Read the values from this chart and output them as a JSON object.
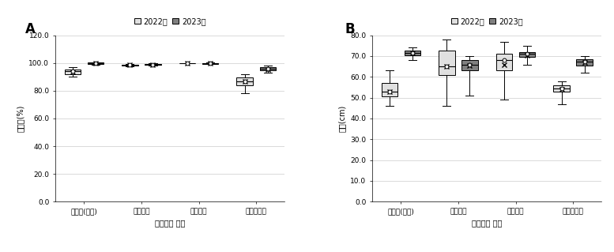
{
  "panel_A": {
    "ylabel": "출현율(%)",
    "xlabel": "비닐멀칭 처리",
    "categories": [
      "무멸칭(대조)",
      "투명비님",
      "흥색비님",
      "투습방수지"
    ],
    "ylim": [
      0,
      120
    ],
    "yticks": [
      0.0,
      20.0,
      40.0,
      60.0,
      80.0,
      100.0,
      120.0
    ],
    "boxes_2022": [
      {
        "q1": 92.0,
        "median": 94.0,
        "q3": 95.5,
        "whislo": 90.0,
        "whishi": 97.0,
        "mean": 93.5
      },
      {
        "q1": 98.0,
        "median": 98.5,
        "q3": 99.0,
        "whislo": 97.5,
        "whishi": 99.5,
        "mean": 98.5
      },
      {
        "q1": 100.0,
        "median": 100.0,
        "q3": 100.0,
        "whislo": 100.0,
        "whishi": 100.0,
        "mean": 100.0
      },
      {
        "q1": 84.0,
        "median": 87.0,
        "q3": 89.5,
        "whislo": 78.0,
        "whishi": 92.0,
        "mean": 87.0
      }
    ],
    "boxes_2023": [
      {
        "q1": 99.5,
        "median": 100.0,
        "q3": 100.5,
        "whislo": 99.0,
        "whishi": 100.5,
        "mean": 100.0
      },
      {
        "q1": 98.5,
        "median": 99.0,
        "q3": 99.5,
        "whislo": 98.0,
        "whishi": 100.0,
        "mean": 99.0
      },
      {
        "q1": 99.5,
        "median": 100.0,
        "q3": 100.0,
        "whislo": 99.5,
        "whishi": 100.5,
        "mean": 100.0
      },
      {
        "q1": 94.5,
        "median": 96.0,
        "q3": 97.0,
        "whislo": 93.0,
        "whishi": 98.0,
        "mean": 95.5
      }
    ]
  },
  "panel_B": {
    "ylabel": "경장(cm)",
    "xlabel": "비님멸칭 처리",
    "categories": [
      "무멸칭(대조)",
      "투명비님",
      "흥색비님",
      "투습방수지"
    ],
    "ylim": [
      0,
      80
    ],
    "yticks": [
      0.0,
      10.0,
      20.0,
      30.0,
      40.0,
      50.0,
      60.0,
      70.0,
      80.0
    ],
    "boxes_2022": [
      {
        "q1": 50.5,
        "median": 53.0,
        "q3": 57.0,
        "whislo": 46.0,
        "whishi": 63.0,
        "mean": 53.0
      },
      {
        "q1": 61.0,
        "median": 65.0,
        "q3": 72.5,
        "whislo": 46.0,
        "whishi": 78.0,
        "mean": 65.0
      },
      {
        "q1": 63.0,
        "median": 68.0,
        "q3": 71.0,
        "whislo": 49.0,
        "whishi": 77.0,
        "mean": 66.0
      },
      {
        "q1": 53.0,
        "median": 54.5,
        "q3": 56.0,
        "whislo": 47.0,
        "whishi": 58.0,
        "mean": 54.0
      }
    ],
    "boxes_2023": [
      {
        "q1": 70.5,
        "median": 71.5,
        "q3": 72.5,
        "whislo": 68.0,
        "whishi": 74.0,
        "mean": 71.5
      },
      {
        "q1": 63.0,
        "median": 66.0,
        "q3": 68.0,
        "whislo": 51.0,
        "whishi": 70.0,
        "mean": 65.5
      },
      {
        "q1": 69.5,
        "median": 71.0,
        "q3": 72.0,
        "whislo": 66.0,
        "whishi": 75.0,
        "mean": 70.5
      },
      {
        "q1": 65.5,
        "median": 67.5,
        "q3": 68.5,
        "whislo": 62.0,
        "whishi": 70.0,
        "mean": 67.0
      }
    ]
  },
  "face_2022": "#e0e0e0",
  "face_2023": "#808080",
  "legend_2022": "2022년",
  "legend_2023": "2023년",
  "label_A": "A",
  "label_B": "B"
}
